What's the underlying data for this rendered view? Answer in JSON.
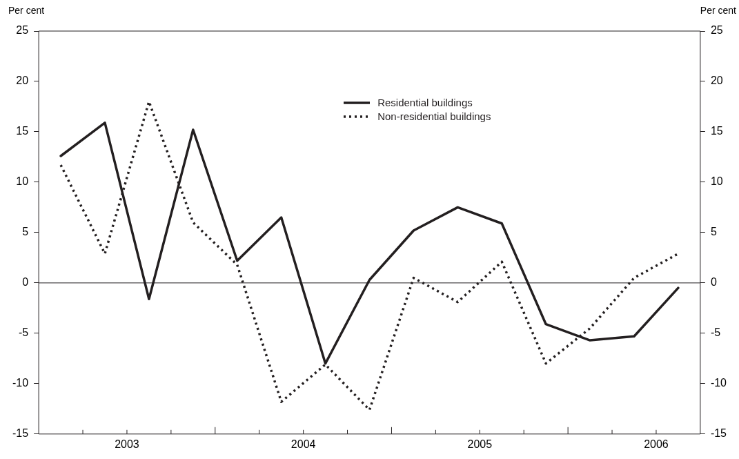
{
  "chart_data": {
    "type": "line",
    "ylabel": "Per cent",
    "y2label": "Per cent",
    "x": [
      2003.125,
      2003.375,
      2003.625,
      2003.875,
      2004.125,
      2004.375,
      2004.625,
      2004.875,
      2005.125,
      2005.375,
      2005.625,
      2005.875,
      2006.125,
      2006.375,
      2006.625
    ],
    "series": [
      {
        "name": "Residential buildings",
        "color": "#231f20",
        "line_style": "solid",
        "values": [
          12.6,
          15.9,
          -1.6,
          15.2,
          2.2,
          6.5,
          -8.0,
          0.3,
          5.2,
          7.5,
          5.9,
          -4.1,
          -5.7,
          -5.3,
          -0.5
        ]
      },
      {
        "name": "Non-residential buildings",
        "color": "#231f20",
        "line_style": "dotted",
        "values": [
          11.7,
          2.9,
          18.0,
          6.0,
          1.8,
          -11.8,
          -8.1,
          -12.6,
          0.5,
          -1.9,
          2.1,
          -8.0,
          -4.5,
          0.5,
          2.9
        ]
      }
    ],
    "xlim": [
      2003,
      2006.75
    ],
    "xticks": [
      {
        "value": 2003.25,
        "label": null
      },
      {
        "value": 2003.5,
        "label": "2003"
      },
      {
        "value": 2003.75,
        "label": null
      },
      {
        "value": 2004,
        "label": null
      },
      {
        "value": 2004.25,
        "label": null
      },
      {
        "value": 2004.5,
        "label": "2004"
      },
      {
        "value": 2004.75,
        "label": null
      },
      {
        "value": 2005,
        "label": null
      },
      {
        "value": 2005.25,
        "label": null
      },
      {
        "value": 2005.5,
        "label": "2005"
      },
      {
        "value": 2005.75,
        "label": null
      },
      {
        "value": 2006,
        "label": null
      },
      {
        "value": 2006.25,
        "label": null
      },
      {
        "value": 2006.5,
        "label": "2006"
      }
    ],
    "ylim": [
      -15,
      25
    ],
    "yticks": [
      -15,
      -10,
      -5,
      0,
      5,
      10,
      15,
      20,
      25
    ],
    "y2lim": [
      -15,
      25
    ],
    "y2ticks": [
      -15,
      -10,
      -5,
      0,
      5,
      10,
      15,
      20,
      25
    ],
    "ref_lines": [
      {
        "axis": "y",
        "value": 0,
        "color": "#231f20"
      }
    ],
    "grid": false,
    "legend": "top",
    "marker": "none"
  }
}
